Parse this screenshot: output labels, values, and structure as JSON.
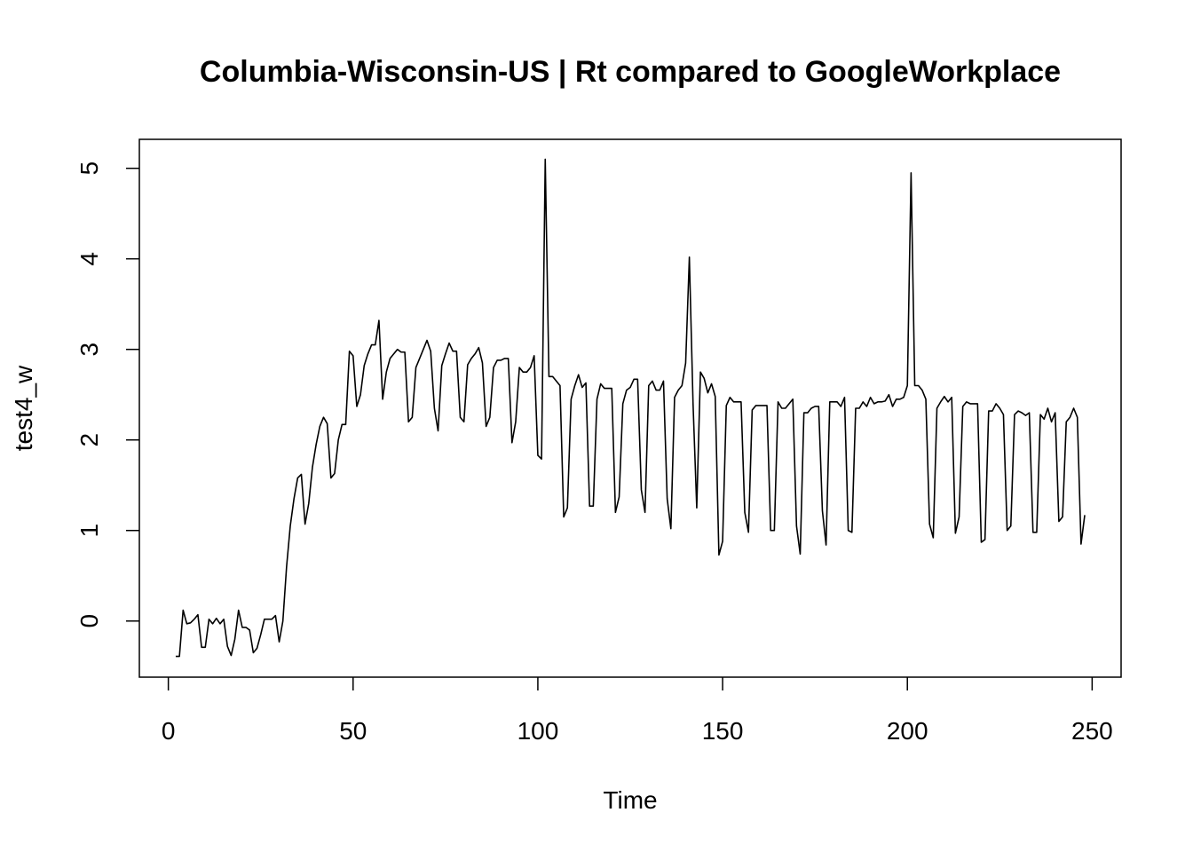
{
  "chart_data": {
    "type": "line",
    "title": "Columbia-Wisconsin-US | Rt compared to GoogleWorkplace",
    "x_label": "Time",
    "y_label": "test4_w",
    "color": "#000000",
    "xlim": [
      -7.84,
      257.84
    ],
    "ylim": [
      -0.62,
      5.32
    ],
    "xticks": [
      0,
      50,
      100,
      150,
      200,
      250
    ],
    "yticks": [
      0,
      1,
      2,
      3,
      4,
      5
    ],
    "x": [
      2,
      3,
      4,
      5,
      6,
      7,
      8,
      9,
      10,
      11,
      12,
      13,
      14,
      15,
      16,
      17,
      18,
      19,
      20,
      21,
      22,
      23,
      24,
      25,
      26,
      27,
      28,
      29,
      30,
      31,
      32,
      33,
      34,
      35,
      36,
      37,
      38,
      39,
      40,
      41,
      42,
      43,
      44,
      45,
      46,
      47,
      48,
      49,
      50,
      51,
      52,
      53,
      54,
      55,
      56,
      57,
      58,
      59,
      60,
      61,
      62,
      63,
      64,
      65,
      66,
      67,
      68,
      69,
      70,
      71,
      72,
      73,
      74,
      75,
      76,
      77,
      78,
      79,
      80,
      81,
      82,
      83,
      84,
      85,
      86,
      87,
      88,
      89,
      90,
      91,
      92,
      93,
      94,
      95,
      96,
      97,
      98,
      99,
      100,
      101,
      102,
      103,
      104,
      105,
      106,
      107,
      108,
      109,
      110,
      111,
      112,
      113,
      114,
      115,
      116,
      117,
      118,
      119,
      120,
      121,
      122,
      123,
      124,
      125,
      126,
      127,
      128,
      129,
      130,
      131,
      132,
      133,
      134,
      135,
      136,
      137,
      138,
      139,
      140,
      141,
      142,
      143,
      144,
      145,
      146,
      147,
      148,
      149,
      150,
      151,
      152,
      153,
      154,
      155,
      156,
      157,
      158,
      159,
      160,
      161,
      162,
      163,
      164,
      165,
      166,
      167,
      168,
      169,
      170,
      171,
      172,
      173,
      174,
      175,
      176,
      177,
      178,
      179,
      180,
      181,
      182,
      183,
      184,
      185,
      186,
      187,
      188,
      189,
      190,
      191,
      192,
      193,
      194,
      195,
      196,
      197,
      198,
      199,
      200,
      201,
      202,
      203,
      204,
      205,
      206,
      207,
      208,
      209,
      210,
      211,
      212,
      213,
      214,
      215,
      216,
      217,
      218,
      219,
      220,
      221,
      222,
      223,
      224,
      225,
      226,
      227,
      228,
      229,
      230,
      231,
      232,
      233,
      234,
      235,
      236,
      237,
      238,
      239,
      240,
      241,
      242,
      243,
      244,
      245,
      246,
      247,
      248
    ],
    "values": [
      -0.39,
      -0.39,
      0.12,
      -0.03,
      -0.02,
      0.02,
      0.07,
      -0.29,
      -0.29,
      0.02,
      -0.03,
      0.03,
      -0.03,
      0.02,
      -0.28,
      -0.38,
      -0.2,
      0.12,
      -0.07,
      -0.07,
      -0.1,
      -0.35,
      -0.3,
      -0.15,
      0.02,
      0.02,
      0.02,
      0.06,
      -0.23,
      0.0,
      0.6,
      1.05,
      1.35,
      1.58,
      1.62,
      1.07,
      1.3,
      1.7,
      1.95,
      2.15,
      2.25,
      2.18,
      1.58,
      1.63,
      2.0,
      2.17,
      2.17,
      2.98,
      2.93,
      2.37,
      2.5,
      2.82,
      2.95,
      3.05,
      3.05,
      3.32,
      2.45,
      2.75,
      2.9,
      2.95,
      3.0,
      2.97,
      2.97,
      2.2,
      2.25,
      2.8,
      2.9,
      3.0,
      3.1,
      2.98,
      2.35,
      2.1,
      2.82,
      2.95,
      3.07,
      2.98,
      2.98,
      2.25,
      2.2,
      2.83,
      2.9,
      2.95,
      3.02,
      2.85,
      2.15,
      2.25,
      2.8,
      2.88,
      2.88,
      2.9,
      2.9,
      1.97,
      2.2,
      2.8,
      2.75,
      2.75,
      2.8,
      2.93,
      1.83,
      1.79,
      5.1,
      2.7,
      2.7,
      2.65,
      2.6,
      1.15,
      1.25,
      2.45,
      2.6,
      2.72,
      2.58,
      2.63,
      1.27,
      1.27,
      2.45,
      2.62,
      2.57,
      2.57,
      2.57,
      1.2,
      1.37,
      2.4,
      2.55,
      2.58,
      2.67,
      2.67,
      1.45,
      1.2,
      2.6,
      2.65,
      2.55,
      2.55,
      2.65,
      1.35,
      1.02,
      2.47,
      2.55,
      2.6,
      2.85,
      4.02,
      2.4,
      1.25,
      2.75,
      2.68,
      2.52,
      2.62,
      2.48,
      0.73,
      0.88,
      2.38,
      2.47,
      2.42,
      2.42,
      2.42,
      1.2,
      0.98,
      2.33,
      2.38,
      2.38,
      2.38,
      2.38,
      1.0,
      1.0,
      2.42,
      2.35,
      2.35,
      2.4,
      2.45,
      1.05,
      0.74,
      2.3,
      2.3,
      2.35,
      2.37,
      2.37,
      1.22,
      0.84,
      2.42,
      2.42,
      2.42,
      2.37,
      2.47,
      1.0,
      0.98,
      2.35,
      2.35,
      2.42,
      2.37,
      2.47,
      2.4,
      2.42,
      2.42,
      2.43,
      2.5,
      2.37,
      2.45,
      2.45,
      2.47,
      2.6,
      4.95,
      2.6,
      2.6,
      2.55,
      2.45,
      1.07,
      0.92,
      2.35,
      2.42,
      2.48,
      2.42,
      2.47,
      0.97,
      1.15,
      2.37,
      2.42,
      2.4,
      2.4,
      2.4,
      0.87,
      0.9,
      2.32,
      2.32,
      2.4,
      2.35,
      2.28,
      1.0,
      1.05,
      2.28,
      2.32,
      2.3,
      2.27,
      2.3,
      0.98,
      0.98,
      2.28,
      2.23,
      2.35,
      2.2,
      2.3,
      1.1,
      1.15,
      2.2,
      2.25,
      2.35,
      2.25,
      0.85,
      1.17
    ]
  }
}
